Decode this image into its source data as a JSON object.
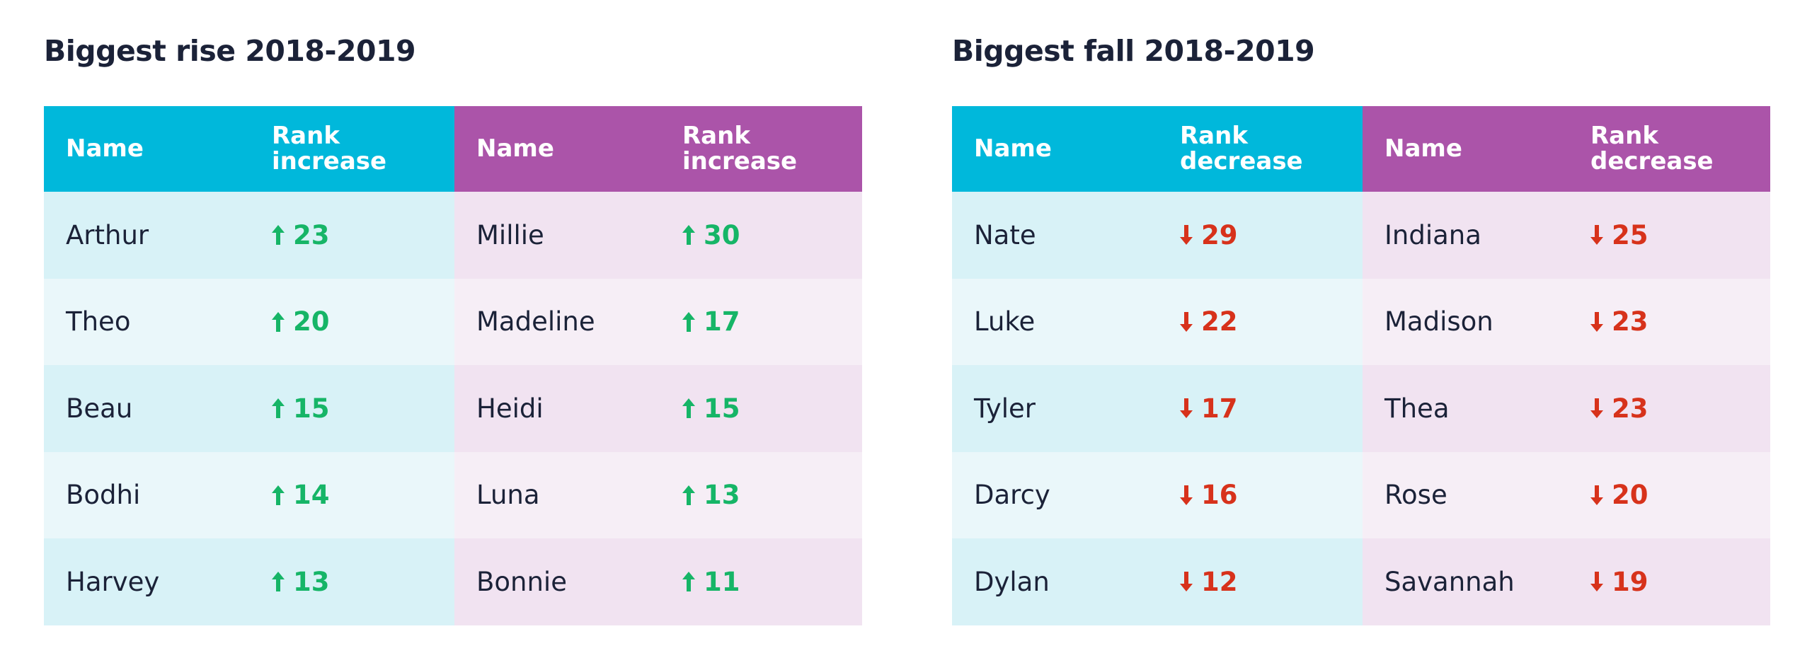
{
  "tables": [
    {
      "title": "Biggest rise 2018-2019",
      "direction": "up",
      "headers": [
        "Name",
        "Rank increase",
        "Name",
        "Rank increase"
      ],
      "rows": [
        [
          "Arthur",
          23,
          "Millie",
          30
        ],
        [
          "Theo",
          20,
          "Madeline",
          17
        ],
        [
          "Beau",
          15,
          "Heidi",
          15
        ],
        [
          "Bodhi",
          14,
          "Luna",
          13
        ],
        [
          "Harvey",
          13,
          "Bonnie",
          11
        ]
      ]
    },
    {
      "title": "Biggest fall 2018-2019",
      "direction": "down",
      "headers": [
        "Name",
        "Rank decrease",
        "Name",
        "Rank decrease"
      ],
      "rows": [
        [
          "Nate",
          29,
          "Indiana",
          25
        ],
        [
          "Luke",
          22,
          "Madison",
          23
        ],
        [
          "Tyler",
          17,
          "Thea",
          23
        ],
        [
          "Darcy",
          16,
          "Rose",
          20
        ],
        [
          "Dylan",
          12,
          "Savannah",
          19
        ]
      ]
    }
  ]
}
